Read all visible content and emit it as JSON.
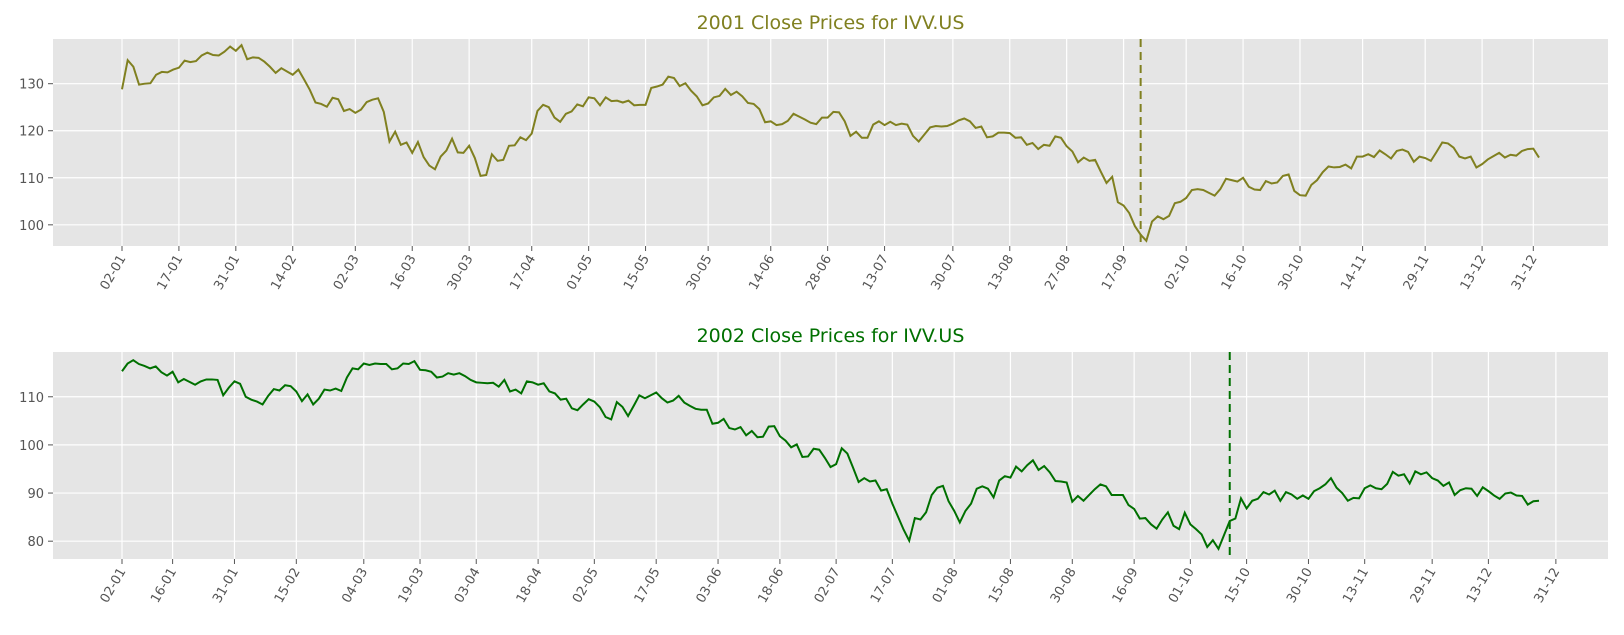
{
  "chart_data": [
    {
      "type": "line",
      "title": "2001 Close Prices for IVV.US",
      "color": "#808020",
      "background": "#e5e5e5",
      "grid": true,
      "xlabel": "",
      "ylabel": "",
      "ylim": [
        95.5,
        139.5
      ],
      "yticks": [
        100,
        110,
        120,
        130
      ],
      "xticks": [
        "02-01",
        "17-01",
        "31-01",
        "14-02",
        "02-03",
        "16-03",
        "30-03",
        "17-04",
        "01-05",
        "15-05",
        "30-05",
        "14-06",
        "28-06",
        "13-07",
        "30-07",
        "13-08",
        "27-08",
        "17-09",
        "02-10",
        "16-10",
        "30-10",
        "14-11",
        "29-11",
        "13-12",
        "31-12"
      ],
      "xtick_index": [
        0,
        10,
        20,
        30,
        41,
        51,
        61,
        72,
        82,
        92,
        103,
        114,
        124,
        134,
        146,
        156,
        166,
        176,
        187,
        197,
        207,
        218,
        229,
        239,
        248
      ],
      "marker_index": 179,
      "values": [
        128.8,
        135.0,
        133.6,
        129.8,
        130.0,
        130.1,
        131.9,
        132.5,
        132.4,
        133.0,
        133.4,
        134.9,
        134.6,
        134.8,
        136.0,
        136.6,
        136.1,
        136.0,
        136.8,
        137.9,
        137.0,
        138.2,
        135.2,
        135.6,
        135.5,
        134.7,
        133.6,
        132.3,
        133.3,
        132.6,
        131.9,
        133.0,
        130.9,
        128.7,
        126.0,
        125.7,
        125.1,
        127.0,
        126.7,
        124.2,
        124.6,
        123.8,
        124.5,
        126.1,
        126.6,
        126.9,
        124.0,
        117.7,
        119.8,
        117.0,
        117.5,
        115.3,
        117.6,
        114.4,
        112.6,
        111.8,
        114.5,
        115.8,
        118.3,
        115.4,
        115.3,
        116.8,
        114.2,
        110.4,
        110.6,
        115.0,
        113.6,
        113.8,
        116.8,
        116.9,
        118.6,
        118.0,
        119.4,
        124.2,
        125.5,
        125.0,
        122.8,
        121.9,
        123.6,
        124.1,
        125.6,
        125.2,
        127.1,
        126.9,
        125.4,
        127.1,
        126.3,
        126.4,
        126.0,
        126.4,
        125.4,
        125.5,
        125.5,
        129.1,
        129.4,
        129.8,
        131.5,
        131.2,
        129.5,
        130.1,
        128.5,
        127.3,
        125.4,
        125.8,
        127.1,
        127.4,
        128.9,
        127.6,
        128.3,
        127.3,
        125.9,
        125.7,
        124.6,
        121.8,
        122.0,
        121.2,
        121.4,
        122.1,
        123.6,
        123.0,
        122.4,
        121.7,
        121.4,
        122.8,
        122.8,
        124.0,
        123.9,
        122.0,
        118.9,
        119.8,
        118.5,
        118.5,
        121.3,
        122.0,
        121.2,
        121.9,
        121.2,
        121.5,
        121.3,
        118.9,
        117.7,
        119.2,
        120.7,
        121.0,
        120.9,
        121.0,
        121.5,
        122.2,
        122.6,
        122.0,
        120.6,
        120.9,
        118.6,
        118.8,
        119.6,
        119.6,
        119.5,
        118.5,
        118.6,
        117.0,
        117.4,
        116.1,
        117.0,
        116.8,
        118.8,
        118.5,
        116.7,
        115.6,
        113.3,
        114.3,
        113.6,
        113.8,
        111.3,
        108.9,
        110.2,
        104.8,
        104.1,
        102.5,
        99.7,
        97.9,
        96.6,
        100.7,
        101.8,
        101.2,
        101.9,
        104.6,
        104.9,
        105.7,
        107.4,
        107.6,
        107.4,
        106.8,
        106.2,
        107.6,
        109.8,
        109.5,
        109.2,
        110.0,
        108.1,
        107.5,
        107.4,
        109.3,
        108.8,
        109.0,
        110.4,
        110.7,
        107.2,
        106.3,
        106.2,
        108.5,
        109.5,
        111.2,
        112.4,
        112.2,
        112.3,
        112.8,
        112.0,
        114.5,
        114.5,
        115.0,
        114.4,
        115.8,
        115.0,
        114.1,
        115.7,
        116.0,
        115.5,
        113.4,
        114.5,
        114.2,
        113.6,
        115.5,
        117.5,
        117.3,
        116.4,
        114.5,
        114.1,
        114.5,
        112.2,
        112.9,
        113.9,
        114.6,
        115.3,
        114.3,
        114.9,
        114.7,
        115.7,
        116.1,
        116.2,
        114.3
      ]
    },
    {
      "type": "line",
      "title": "2002 Close Prices for IVV.US",
      "color": "#007000",
      "background": "#e5e5e5",
      "grid": true,
      "xlabel": "",
      "ylabel": "",
      "ylim": [
        76.3,
        119.3
      ],
      "yticks": [
        80,
        90,
        100,
        110
      ],
      "xticks": [
        "02-01",
        "16-01",
        "31-01",
        "15-02",
        "04-03",
        "19-03",
        "03-04",
        "18-04",
        "02-05",
        "17-05",
        "03-06",
        "18-06",
        "02-07",
        "17-07",
        "01-08",
        "15-08",
        "30-08",
        "16-09",
        "01-10",
        "15-10",
        "30-10",
        "13-11",
        "29-11",
        "13-12",
        "31-12"
      ],
      "xtick_index": [
        0,
        9,
        20,
        31,
        43,
        53,
        63,
        74,
        84,
        95,
        106,
        117,
        127,
        137,
        148,
        158,
        169,
        180,
        190,
        200,
        211,
        221,
        233,
        243,
        255
      ],
      "marker_index": 197,
      "values": [
        115.3,
        116.9,
        117.6,
        116.8,
        116.4,
        115.9,
        116.3,
        115.1,
        114.4,
        115.2,
        113.0,
        113.7,
        113.1,
        112.5,
        113.2,
        113.6,
        113.6,
        113.5,
        110.3,
        111.9,
        113.2,
        112.7,
        110.0,
        109.4,
        109.0,
        108.4,
        110.2,
        111.6,
        111.3,
        112.4,
        112.2,
        111.1,
        109.1,
        110.5,
        108.4,
        109.6,
        111.5,
        111.3,
        111.7,
        111.2,
        114.0,
        115.9,
        115.7,
        116.9,
        116.6,
        116.9,
        116.8,
        116.8,
        115.7,
        115.9,
        116.9,
        116.8,
        117.4,
        115.6,
        115.5,
        115.2,
        114.0,
        114.2,
        114.9,
        114.6,
        114.9,
        114.3,
        113.5,
        113.0,
        112.9,
        112.8,
        112.9,
        112.1,
        113.5,
        111.1,
        111.5,
        110.7,
        113.2,
        113.0,
        112.5,
        112.8,
        111.1,
        110.7,
        109.4,
        109.6,
        107.6,
        107.2,
        108.4,
        109.5,
        109.0,
        107.8,
        105.8,
        105.3,
        108.9,
        107.9,
        106.0,
        108.1,
        110.3,
        109.7,
        110.3,
        110.9,
        109.7,
        108.8,
        109.2,
        110.2,
        108.8,
        108.1,
        107.5,
        107.3,
        107.3,
        104.4,
        104.6,
        105.4,
        103.5,
        103.2,
        103.7,
        102.0,
        102.9,
        101.6,
        101.7,
        103.8,
        103.9,
        101.8,
        100.9,
        99.5,
        100.1,
        97.5,
        97.6,
        99.2,
        99.0,
        97.3,
        95.4,
        96.0,
        99.3,
        98.2,
        95.3,
        92.3,
        93.1,
        92.4,
        92.6,
        90.5,
        90.8,
        87.8,
        85.1,
        82.4,
        80.1,
        84.8,
        84.5,
        86.0,
        89.6,
        91.1,
        91.5,
        88.3,
        86.3,
        83.9,
        86.3,
        87.8,
        90.9,
        91.4,
        90.9,
        89.1,
        92.6,
        93.5,
        93.2,
        95.5,
        94.5,
        95.8,
        96.8,
        94.8,
        95.6,
        94.3,
        92.5,
        92.4,
        92.2,
        88.2,
        89.4,
        88.4,
        89.6,
        90.8,
        91.8,
        91.4,
        89.6,
        89.6,
        89.6,
        87.5,
        86.7,
        84.7,
        84.8,
        83.5,
        82.6,
        84.5,
        86.0,
        83.2,
        82.5,
        85.9,
        83.5,
        82.5,
        81.4,
        78.8,
        80.2,
        78.4,
        81.3,
        84.2,
        84.7,
        88.9,
        86.8,
        88.4,
        88.8,
        90.2,
        89.7,
        90.5,
        88.4,
        90.2,
        89.7,
        88.8,
        89.5,
        88.8,
        90.4,
        91.0,
        91.8,
        93.1,
        91.1,
        90.0,
        88.4,
        89.0,
        88.9,
        91.0,
        91.6,
        91.0,
        90.8,
        91.9,
        94.4,
        93.6,
        93.9,
        92.0,
        94.5,
        93.9,
        94.3,
        93.1,
        92.6,
        91.5,
        92.2,
        89.6,
        90.6,
        91.0,
        90.9,
        89.4,
        91.2,
        90.4,
        89.5,
        88.8,
        89.9,
        90.1,
        89.5,
        89.4,
        87.6,
        88.3,
        88.4
      ]
    }
  ]
}
